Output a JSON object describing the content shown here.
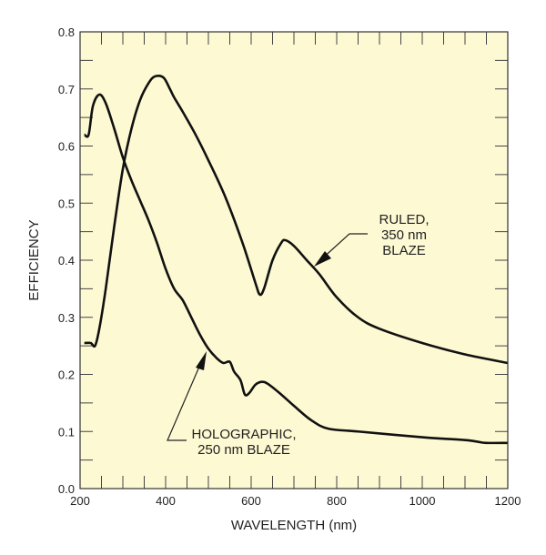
{
  "chart_data": {
    "type": "line",
    "title": "",
    "xlabel": "WAVELENGTH (nm)",
    "ylabel": "EFFICIENCY",
    "xlim": [
      200,
      1200
    ],
    "ylim": [
      0.0,
      0.8
    ],
    "xticks": [
      "200",
      "400",
      "600",
      "800",
      "1000",
      "1200"
    ],
    "yticks": [
      "0.0",
      "0.1",
      "0.2",
      "0.3",
      "0.4",
      "0.5",
      "0.6",
      "0.7",
      "0.8"
    ],
    "grid": false,
    "background_color": "#fdf9d3",
    "line_color": "#111111",
    "series": [
      {
        "name": "RULED, 350 nm BLAZE",
        "x": [
          210,
          225,
          235,
          245,
          260,
          280,
          300,
          320,
          340,
          360,
          375,
          395,
          410,
          420,
          440,
          470,
          500,
          540,
          580,
          610,
          620,
          630,
          650,
          670,
          680,
          700,
          730,
          760,
          800,
          850,
          900,
          1000,
          1100,
          1200
        ],
        "y": [
          0.255,
          0.255,
          0.25,
          0.28,
          0.35,
          0.46,
          0.56,
          0.63,
          0.68,
          0.71,
          0.722,
          0.72,
          0.7,
          0.685,
          0.66,
          0.62,
          0.575,
          0.51,
          0.43,
          0.36,
          0.34,
          0.35,
          0.4,
          0.43,
          0.435,
          0.425,
          0.4,
          0.375,
          0.335,
          0.3,
          0.28,
          0.255,
          0.235,
          0.22
        ]
      },
      {
        "name": "HOLOGRAPHIC, 250 nm BLAZE",
        "x": [
          210,
          220,
          230,
          245,
          260,
          280,
          300,
          320,
          340,
          360,
          380,
          400,
          420,
          440,
          460,
          480,
          500,
          520,
          535,
          550,
          560,
          575,
          585,
          595,
          610,
          625,
          640,
          670,
          700,
          740,
          780,
          850,
          1000,
          1100,
          1130,
          1150,
          1200
        ],
        "y": [
          0.62,
          0.62,
          0.67,
          0.69,
          0.675,
          0.63,
          0.58,
          0.54,
          0.505,
          0.47,
          0.43,
          0.385,
          0.35,
          0.33,
          0.3,
          0.27,
          0.245,
          0.228,
          0.22,
          0.222,
          0.205,
          0.19,
          0.165,
          0.167,
          0.182,
          0.187,
          0.183,
          0.165,
          0.145,
          0.12,
          0.105,
          0.1,
          0.09,
          0.085,
          0.082,
          0.08,
          0.08
        ]
      }
    ],
    "annotations": [
      {
        "lines": [
          "RULED,",
          "350 nm",
          "BLAZE"
        ],
        "points_to": "RULED, 350 nm BLAZE",
        "at_x": 720
      },
      {
        "lines": [
          "HOLOGRAPHIC,",
          "250 nm BLAZE"
        ],
        "points_to": "HOLOGRAPHIC, 250 nm BLAZE",
        "at_x": 505
      }
    ]
  }
}
